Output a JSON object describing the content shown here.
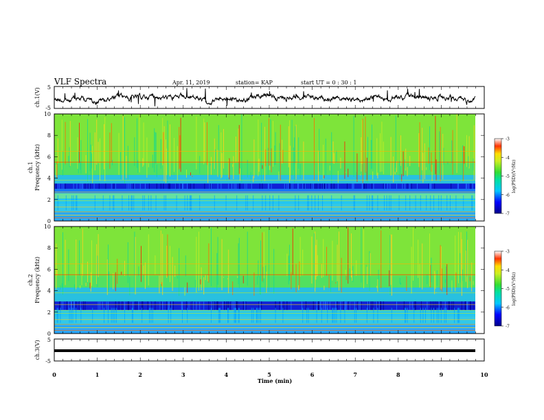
{
  "header": {
    "title": "VLF Spectra",
    "date": "Apr. 11, 2019",
    "station": "station= KAP",
    "start_ut": "start UT =  0 : 30 : 1"
  },
  "chart_data": [
    {
      "type": "line",
      "panel": "ch1-waveform",
      "ylabel": "ch.1(V)",
      "ylim": [
        -5,
        5
      ],
      "yticks": [
        "5",
        "-5"
      ],
      "xlim": [
        0,
        10
      ],
      "series": [
        {
          "x": [
            0,
            9.8
          ],
          "values": [
            0,
            0
          ],
          "note_noise": "dense oscillation"
        }
      ],
      "color": "#000000"
    },
    {
      "type": "heatmap",
      "panel": "ch1-spectrogram",
      "ylabel": "ch.1\nFrequency (kHz)",
      "ylabel_line1": "ch.1",
      "ylabel_line2": "Frequency (kHz)",
      "ylim": [
        0,
        10
      ],
      "yticks": [
        "0",
        "2",
        "4",
        "6",
        "8",
        "10"
      ],
      "xlim": [
        0,
        10
      ],
      "colorbar": {
        "label": "log(PSD)(V²/Hz)",
        "range": [
          -7,
          -3
        ],
        "ticks": [
          "-3",
          "-4",
          "-5",
          "-6",
          "-7"
        ]
      }
    },
    {
      "type": "heatmap",
      "panel": "ch2-spectrogram",
      "ylabel_line1": "ch.2",
      "ylabel_line2": "Frequency (kHz)",
      "ylim": [
        0,
        10
      ],
      "yticks": [
        "0",
        "2",
        "4",
        "6",
        "8",
        "10"
      ],
      "xlim": [
        0,
        10
      ],
      "colorbar": {
        "label": "log(PSD)(V²/Hz)",
        "range": [
          -7,
          -3
        ],
        "ticks": [
          "-3",
          "-4",
          "-5",
          "-6",
          "-7"
        ]
      }
    },
    {
      "type": "line",
      "panel": "ch3-waveform",
      "ylabel": "ch.3(V)",
      "ylim": [
        -5,
        5
      ],
      "yticks": [
        "5",
        "-5"
      ],
      "xlim": [
        0,
        10
      ],
      "series": [
        {
          "x": [
            0,
            9.8
          ],
          "values": [
            0,
            0
          ]
        }
      ],
      "color": "#000000"
    }
  ],
  "xaxis": {
    "label": "Time  (min)",
    "ticks": [
      "0",
      "1",
      "2",
      "3",
      "4",
      "5",
      "6",
      "7",
      "8",
      "9",
      "10"
    ]
  }
}
